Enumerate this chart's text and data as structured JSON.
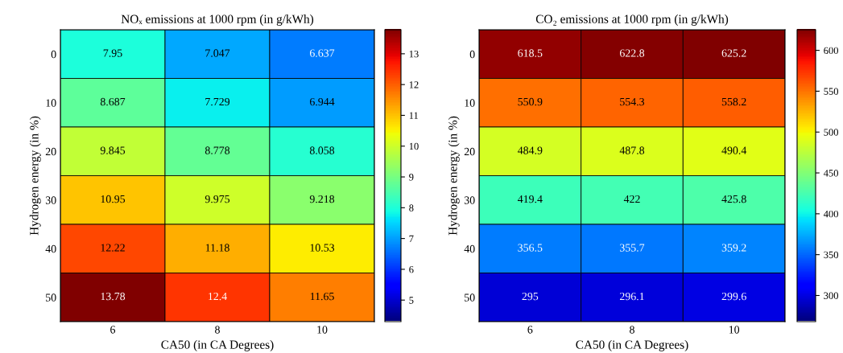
{
  "chart_data": [
    {
      "type": "heatmap",
      "title": "NOₓ emissions at 1000 rpm (in g/kWh)",
      "xlabel": "CA50 (in CA Degrees)",
      "ylabel": "Hydrogen energy (in %)",
      "categories": [
        "6",
        "8",
        "10"
      ],
      "y_categories": [
        "0",
        "10",
        "20",
        "30",
        "40",
        "50"
      ],
      "cells": [
        [
          7.95,
          7.047,
          6.637
        ],
        [
          8.687,
          7.729,
          6.944
        ],
        [
          9.845,
          8.778,
          8.058
        ],
        [
          10.95,
          9.975,
          9.218
        ],
        [
          12.22,
          11.18,
          10.53
        ],
        [
          13.78,
          12.4,
          11.65
        ]
      ],
      "clim": [
        4.3,
        13.78
      ],
      "cticks": [
        5,
        6,
        7,
        8,
        9,
        10,
        11,
        12,
        13
      ],
      "data_labels": true
    },
    {
      "type": "heatmap",
      "title": "CO₂ emissions at 1000 rpm (in g/kWh)",
      "xlabel": "CA50 (in CA Degrees)",
      "ylabel": "Hydrogen energy (in %)",
      "categories": [
        "6",
        "8",
        "10"
      ],
      "y_categories": [
        "0",
        "10",
        "20",
        "30",
        "40",
        "50"
      ],
      "cells": [
        [
          618.5,
          622.8,
          625.2
        ],
        [
          550.9,
          554.3,
          558.2
        ],
        [
          484.9,
          487.8,
          490.4
        ],
        [
          419.4,
          422,
          425.8
        ],
        [
          356.5,
          355.7,
          359.2
        ],
        [
          295,
          296.1,
          299.6
        ]
      ],
      "clim": [
        268,
        625.2
      ],
      "cticks": [
        300,
        350,
        400,
        450,
        500,
        550,
        600
      ],
      "data_labels": true
    }
  ]
}
